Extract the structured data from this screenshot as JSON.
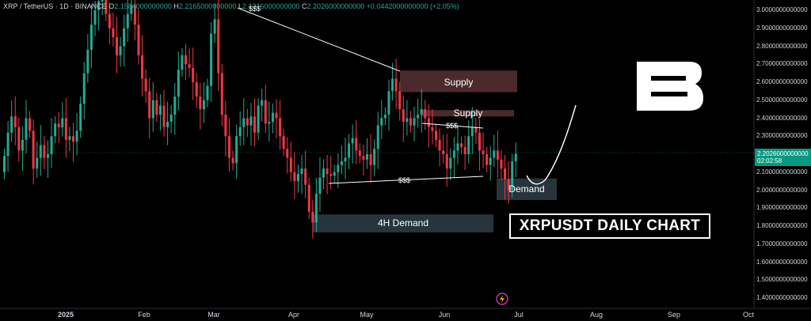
{
  "header": {
    "symbol": "XRP / TetherUS · 1D · BINANCE",
    "open_label": "O",
    "open_value": "2.1584000000000",
    "high_label": "H",
    "high_value": "2.2165000000000",
    "low_label": "L",
    "low_value": "2.1316000000000",
    "close_label": "C",
    "close_value": "2.2026000000000",
    "change": "+0.0442000000000 (+2.05%)"
  },
  "colors": {
    "up": "#22ab94",
    "down": "#f23645",
    "background": "#000000",
    "zone": "#2a3a40",
    "supply": "#4a2a2c"
  },
  "chart_data": {
    "type": "candlestick",
    "title": "XRPUSDT DAILY CHART",
    "y_ticks": [
      "3.0000000000000",
      "2.9000000000000",
      "2.8000000000000",
      "2.7000000000000",
      "2.6000000000000",
      "2.5000000000000",
      "2.4000000000000",
      "2.3000000000000",
      "2.2000000000000",
      "2.1000000000000",
      "2.0000000000000",
      "1.9000000000000",
      "1.8000000000000",
      "1.7000000000000",
      "1.6000000000000",
      "1.5000000000000",
      "1.4000000000000"
    ],
    "ylim": [
      1.37,
      3.02
    ],
    "x_ticks": [
      "2025",
      "Feb",
      "Mar",
      "Apr",
      "May",
      "Jun",
      "Jul",
      "Aug",
      "Sep",
      "Oct"
    ],
    "last_price": "2.2026000000000",
    "countdown": "02:02:58",
    "zones": [
      {
        "label": "Supply",
        "from": 2.545,
        "to": 2.665
      },
      {
        "label": "Supply",
        "from": 2.41,
        "to": 2.445
      },
      {
        "label": "4H Demand",
        "from": 1.765,
        "to": 1.865
      },
      {
        "label": "Demand",
        "from": 1.945,
        "to": 2.065
      }
    ],
    "annotations": [
      "$$$",
      "$$$",
      "$$$"
    ],
    "closes": [
      2.19,
      2.32,
      2.41,
      2.35,
      2.22,
      2.28,
      2.4,
      2.33,
      2.12,
      2.18,
      2.25,
      2.18,
      2.2,
      2.3,
      2.37,
      2.35,
      2.4,
      2.28,
      2.3,
      2.27,
      2.33,
      2.48,
      2.65,
      2.78,
      2.92,
      3.0,
      3.05,
      3.08,
      2.98,
      2.9,
      2.85,
      2.75,
      2.8,
      2.9,
      2.98,
      3.03,
      2.92,
      2.75,
      2.62,
      2.55,
      2.4,
      2.5,
      2.42,
      2.47,
      2.35,
      2.38,
      2.42,
      2.52,
      2.67,
      2.75,
      2.7,
      2.68,
      2.6,
      2.52,
      2.45,
      2.5,
      2.58,
      2.87,
      2.95,
      2.65,
      2.42,
      2.3,
      2.18,
      2.15,
      2.3,
      2.35,
      2.4,
      2.36,
      2.41,
      2.32,
      2.47,
      2.5,
      2.37,
      2.38,
      2.43,
      2.4,
      2.3,
      2.23,
      2.18,
      2.1,
      2.05,
      2.09,
      2.12,
      2.03,
      1.88,
      1.82,
      1.98,
      2.07,
      2.12,
      2.09,
      2.08,
      2.1,
      2.14,
      2.16,
      2.18,
      2.26,
      2.29,
      2.22,
      2.19,
      2.17,
      2.2,
      2.14,
      2.23,
      2.36,
      2.4,
      2.42,
      2.55,
      2.62,
      2.55,
      2.45,
      2.38,
      2.4,
      2.36,
      2.4,
      2.42,
      2.45,
      2.4,
      2.35,
      2.33,
      2.28,
      2.22,
      2.2,
      2.12,
      2.18,
      2.22,
      2.26,
      2.24,
      2.2,
      2.3,
      2.35,
      2.32,
      2.22,
      2.2,
      2.14,
      2.18,
      2.22,
      2.17,
      2.12,
      2.06,
      2.0,
      2.16,
      2.2026
    ]
  },
  "logo": {
    "letter": "B"
  }
}
